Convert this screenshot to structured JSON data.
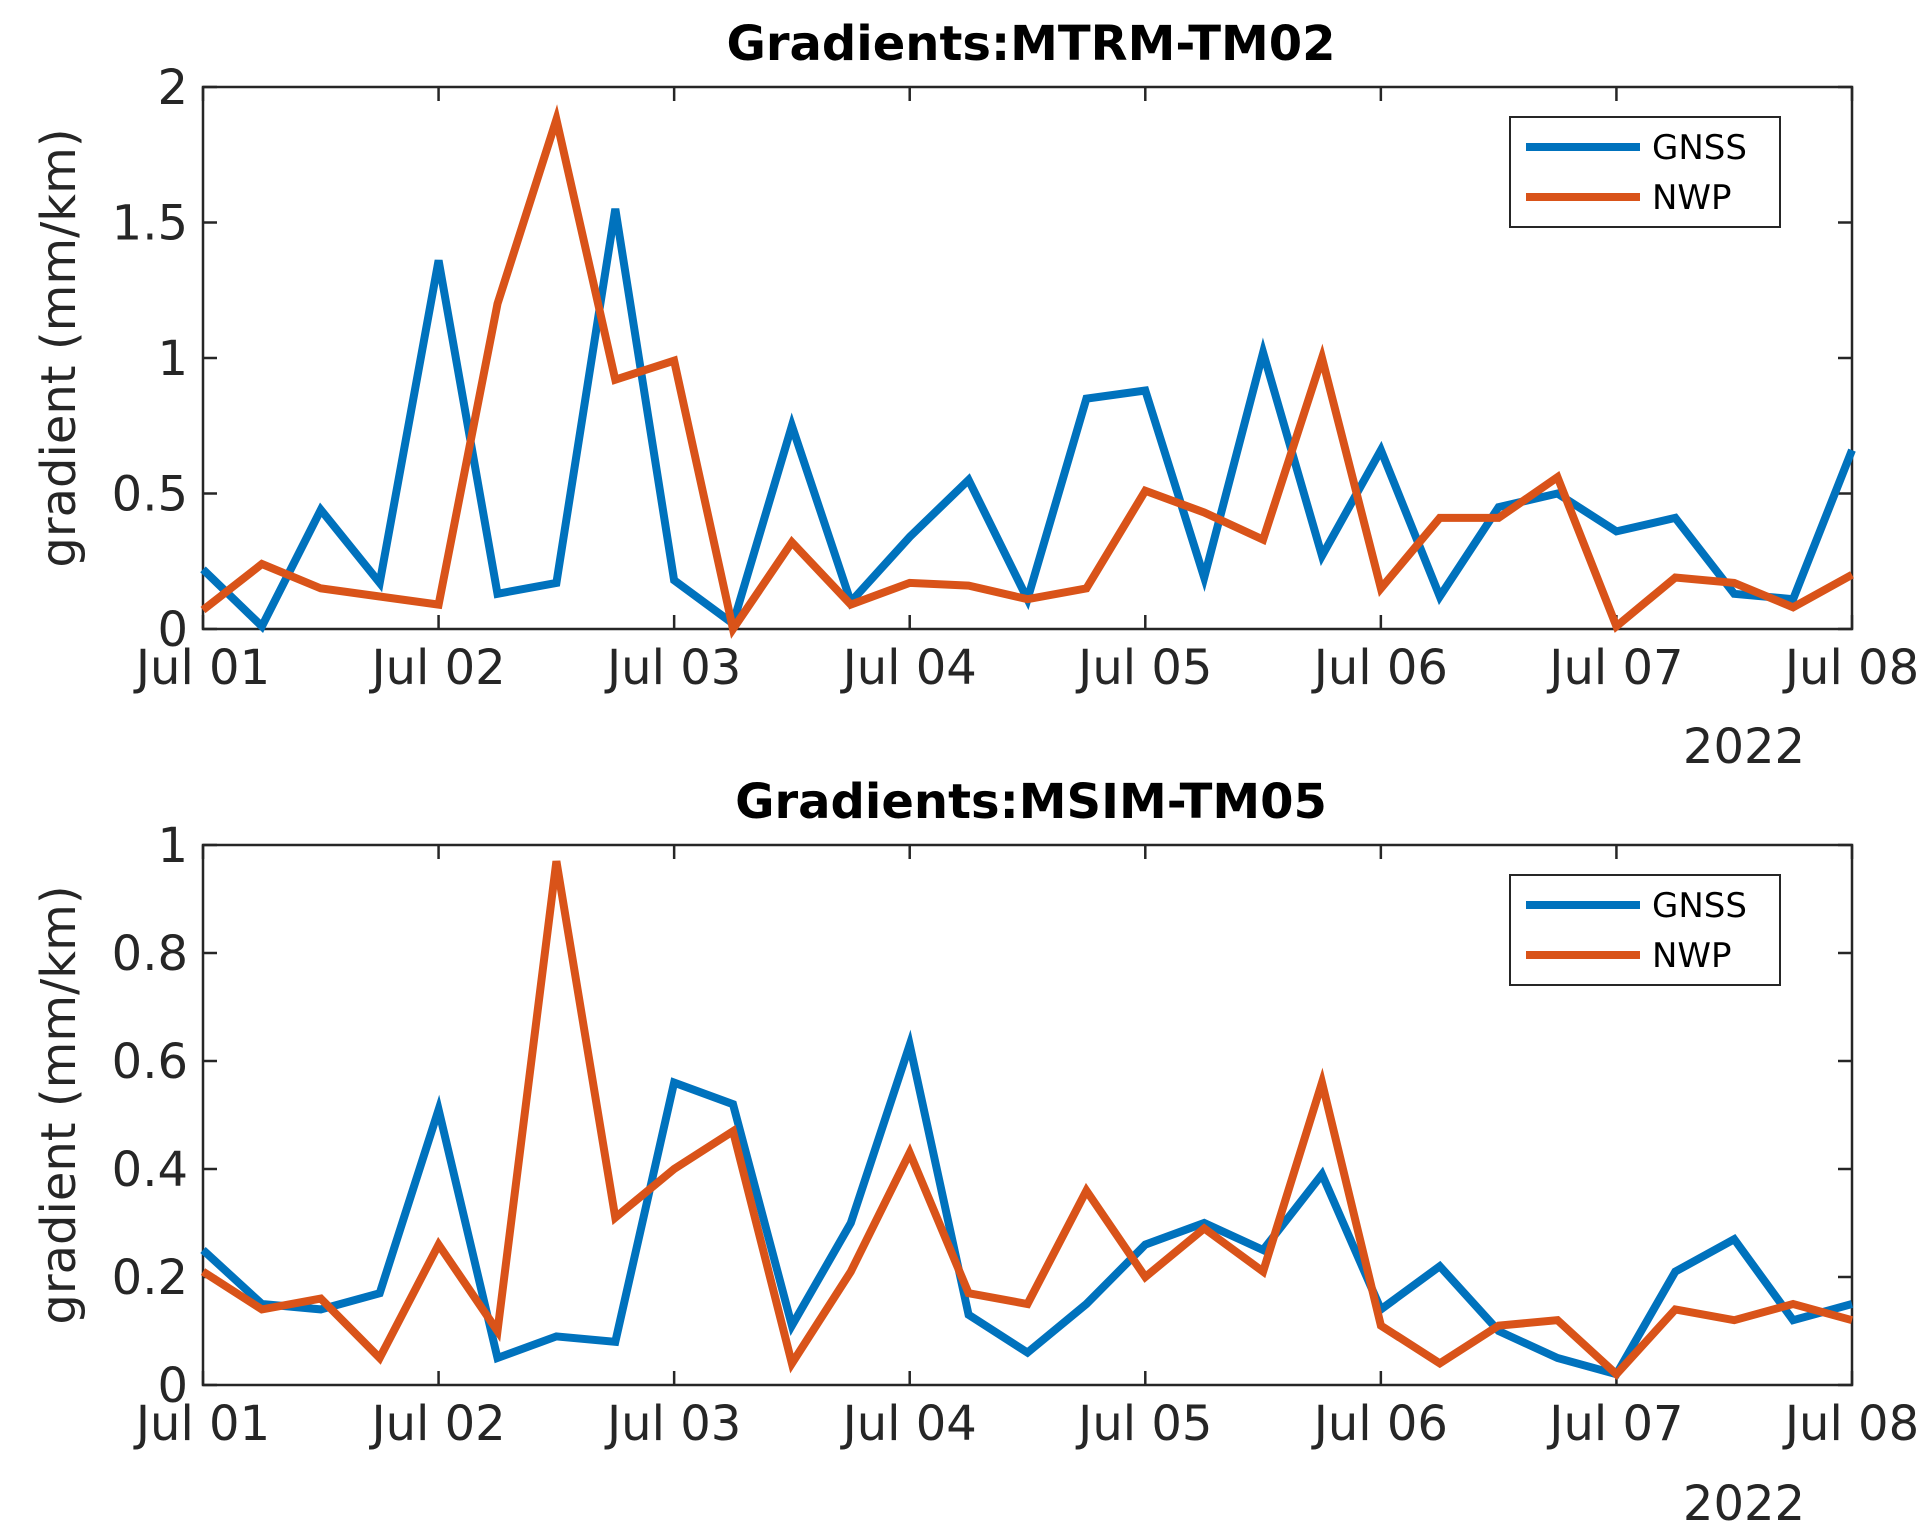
{
  "chart_data": [
    {
      "type": "line",
      "title": "Gradients:MTRM-TM02",
      "ylabel": "gradient (mm/km)",
      "xlabel": "",
      "year_label": "2022",
      "x_tick_labels": [
        "Jul 01",
        "Jul 02",
        "Jul 03",
        "Jul 04",
        "Jul 05",
        "Jul 06",
        "Jul 07",
        "Jul 08"
      ],
      "y_tick_labels": [
        "0",
        "0.5",
        "1",
        "1.5",
        "2"
      ],
      "ylim": [
        0,
        2
      ],
      "x_range": [
        "2022-07-01 00:00",
        "2022-07-08 00:00"
      ],
      "x": [
        "2022-07-01 00:00",
        "2022-07-01 06:00",
        "2022-07-01 12:00",
        "2022-07-01 18:00",
        "2022-07-02 00:00",
        "2022-07-02 06:00",
        "2022-07-02 12:00",
        "2022-07-02 18:00",
        "2022-07-03 00:00",
        "2022-07-03 06:00",
        "2022-07-03 12:00",
        "2022-07-03 18:00",
        "2022-07-04 00:00",
        "2022-07-04 06:00",
        "2022-07-04 12:00",
        "2022-07-04 18:00",
        "2022-07-05 00:00",
        "2022-07-05 06:00",
        "2022-07-05 12:00",
        "2022-07-05 18:00",
        "2022-07-06 00:00",
        "2022-07-06 06:00",
        "2022-07-06 12:00",
        "2022-07-06 18:00",
        "2022-07-07 00:00",
        "2022-07-07 06:00",
        "2022-07-07 12:00",
        "2022-07-07 18:00",
        "2022-07-08 00:00"
      ],
      "legend_position": "top-right",
      "grid": false,
      "series": [
        {
          "name": "GNSS",
          "color": "#0072BD",
          "values": [
            0.22,
            0.01,
            0.44,
            0.17,
            1.36,
            0.13,
            0.17,
            1.55,
            0.18,
            0.02,
            0.75,
            0.1,
            0.34,
            0.55,
            0.11,
            0.85,
            0.88,
            0.19,
            1.02,
            0.27,
            0.66,
            0.12,
            0.45,
            0.5,
            0.36,
            0.41,
            0.13,
            0.11,
            0.66
          ]
        },
        {
          "name": "NWP",
          "color": "#D95319",
          "values": [
            0.07,
            0.24,
            0.15,
            0.12,
            0.09,
            1.2,
            1.88,
            0.92,
            0.99,
            0.0,
            0.32,
            0.09,
            0.17,
            0.16,
            0.11,
            0.15,
            0.51,
            0.43,
            0.33,
            1.0,
            0.15,
            0.41,
            0.41,
            0.56,
            0.01,
            0.19,
            0.17,
            0.08,
            0.2
          ]
        }
      ]
    },
    {
      "type": "line",
      "title": "Gradients:MSIM-TM05",
      "ylabel": "gradient (mm/km)",
      "xlabel": "",
      "year_label": "2022",
      "x_tick_labels": [
        "Jul 01",
        "Jul 02",
        "Jul 03",
        "Jul 04",
        "Jul 05",
        "Jul 06",
        "Jul 07",
        "Jul 08"
      ],
      "y_tick_labels": [
        "0",
        "0.2",
        "0.4",
        "0.6",
        "0.8",
        "1"
      ],
      "ylim": [
        0,
        1
      ],
      "x_range": [
        "2022-07-01 00:00",
        "2022-07-08 00:00"
      ],
      "x": [
        "2022-07-01 00:00",
        "2022-07-01 06:00",
        "2022-07-01 12:00",
        "2022-07-01 18:00",
        "2022-07-02 00:00",
        "2022-07-02 06:00",
        "2022-07-02 12:00",
        "2022-07-02 18:00",
        "2022-07-03 00:00",
        "2022-07-03 06:00",
        "2022-07-03 12:00",
        "2022-07-03 18:00",
        "2022-07-04 00:00",
        "2022-07-04 06:00",
        "2022-07-04 12:00",
        "2022-07-04 18:00",
        "2022-07-05 00:00",
        "2022-07-05 06:00",
        "2022-07-05 12:00",
        "2022-07-05 18:00",
        "2022-07-06 00:00",
        "2022-07-06 06:00",
        "2022-07-06 12:00",
        "2022-07-06 18:00",
        "2022-07-07 00:00",
        "2022-07-07 06:00",
        "2022-07-07 12:00",
        "2022-07-07 18:00",
        "2022-07-08 00:00"
      ],
      "legend_position": "top-right",
      "grid": false,
      "series": [
        {
          "name": "GNSS",
          "color": "#0072BD",
          "values": [
            0.25,
            0.15,
            0.14,
            0.17,
            0.51,
            0.05,
            0.09,
            0.08,
            0.56,
            0.52,
            0.11,
            0.3,
            0.63,
            0.13,
            0.06,
            0.15,
            0.26,
            0.3,
            0.25,
            0.39,
            0.14,
            0.22,
            0.1,
            0.05,
            0.02,
            0.21,
            0.27,
            0.12,
            0.15
          ]
        },
        {
          "name": "NWP",
          "color": "#D95319",
          "values": [
            0.21,
            0.14,
            0.16,
            0.05,
            0.26,
            0.1,
            0.97,
            0.31,
            0.4,
            0.47,
            0.04,
            0.21,
            0.43,
            0.17,
            0.15,
            0.36,
            0.2,
            0.29,
            0.21,
            0.56,
            0.11,
            0.04,
            0.11,
            0.12,
            0.02,
            0.14,
            0.12,
            0.15,
            0.12
          ]
        }
      ]
    }
  ]
}
